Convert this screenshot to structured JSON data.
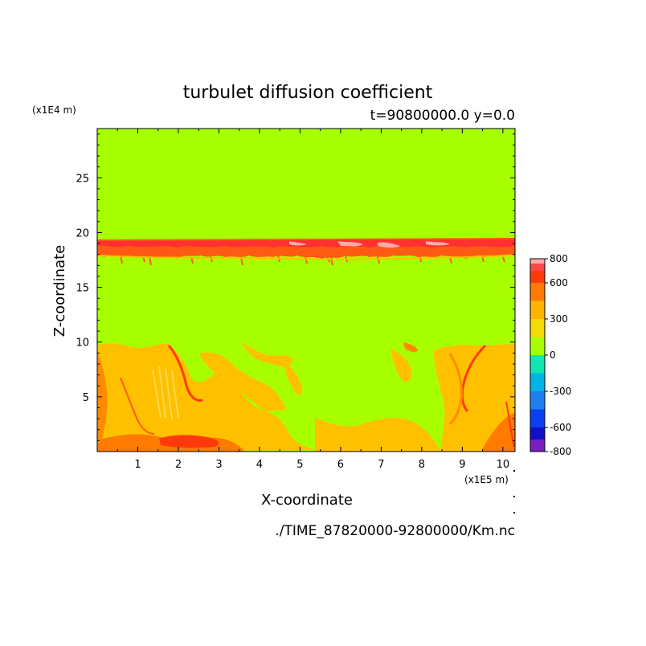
{
  "chart_data": {
    "type": "heatmap",
    "title": "turbulet diffusion coefficient",
    "subtitle": "t=90800000.0 y=0.0",
    "xlabel": "X-coordinate",
    "ylabel": "Z-coordinate",
    "x_unit": "(x1E5 m)",
    "y_unit": "(x1E4 m)",
    "file_path": "./TIME_87820000-92800000/Km.nc",
    "xlim": [
      0,
      10.3
    ],
    "ylim": [
      0,
      29.5
    ],
    "x_ticks": [
      1,
      2,
      3,
      4,
      5,
      6,
      7,
      8,
      9,
      10
    ],
    "y_ticks": [
      5,
      10,
      15,
      20,
      25
    ],
    "colorbar": {
      "range": [
        -800,
        800
      ],
      "tick_labels": [
        "800",
        "600",
        "300",
        "0",
        "-300",
        "-600",
        "-800"
      ],
      "tick_values": [
        800,
        600,
        300,
        0,
        -300,
        -600,
        -800
      ],
      "levels": [
        {
          "from": -800,
          "to": -700,
          "color": "#7a1fbf"
        },
        {
          "from": -700,
          "to": -600,
          "color": "#1010c8"
        },
        {
          "from": -600,
          "to": -450,
          "color": "#0a40f0"
        },
        {
          "from": -450,
          "to": -300,
          "color": "#1e80f0"
        },
        {
          "from": -300,
          "to": -150,
          "color": "#00b4e6"
        },
        {
          "from": -150,
          "to": 0,
          "color": "#10e6b4"
        },
        {
          "from": 0,
          "to": 150,
          "color": "#a8ff00"
        },
        {
          "from": 150,
          "to": 300,
          "color": "#f5dc00"
        },
        {
          "from": 300,
          "to": 450,
          "color": "#ffb400"
        },
        {
          "from": 450,
          "to": 600,
          "color": "#ff7a00"
        },
        {
          "from": 600,
          "to": 700,
          "color": "#ff3a0a"
        },
        {
          "from": 700,
          "to": 760,
          "color": "#ff4848"
        },
        {
          "from": 760,
          "to": 800,
          "color": "#ffaaaa"
        }
      ]
    },
    "background_value_color": "#a8ff00",
    "features": [
      {
        "name": "upper-band",
        "z_from": 18,
        "z_to": 20,
        "x_from": 0,
        "x_to": 10.3,
        "value_range": [
          450,
          800
        ]
      },
      {
        "name": "lower-left-plume",
        "z_from": 0,
        "z_to": 10.2,
        "x_from": 0,
        "x_to": 3.6,
        "value_range": [
          150,
          600
        ]
      },
      {
        "name": "lower-right-plume",
        "z_from": 0,
        "z_to": 10.2,
        "x_from": 8.4,
        "x_to": 10.3,
        "value_range": [
          150,
          600
        ]
      },
      {
        "name": "lower-middle-patches",
        "z_from": 0,
        "z_to": 8,
        "x_from": 3.6,
        "x_to": 8.4,
        "value_range": [
          150,
          300
        ]
      }
    ]
  }
}
